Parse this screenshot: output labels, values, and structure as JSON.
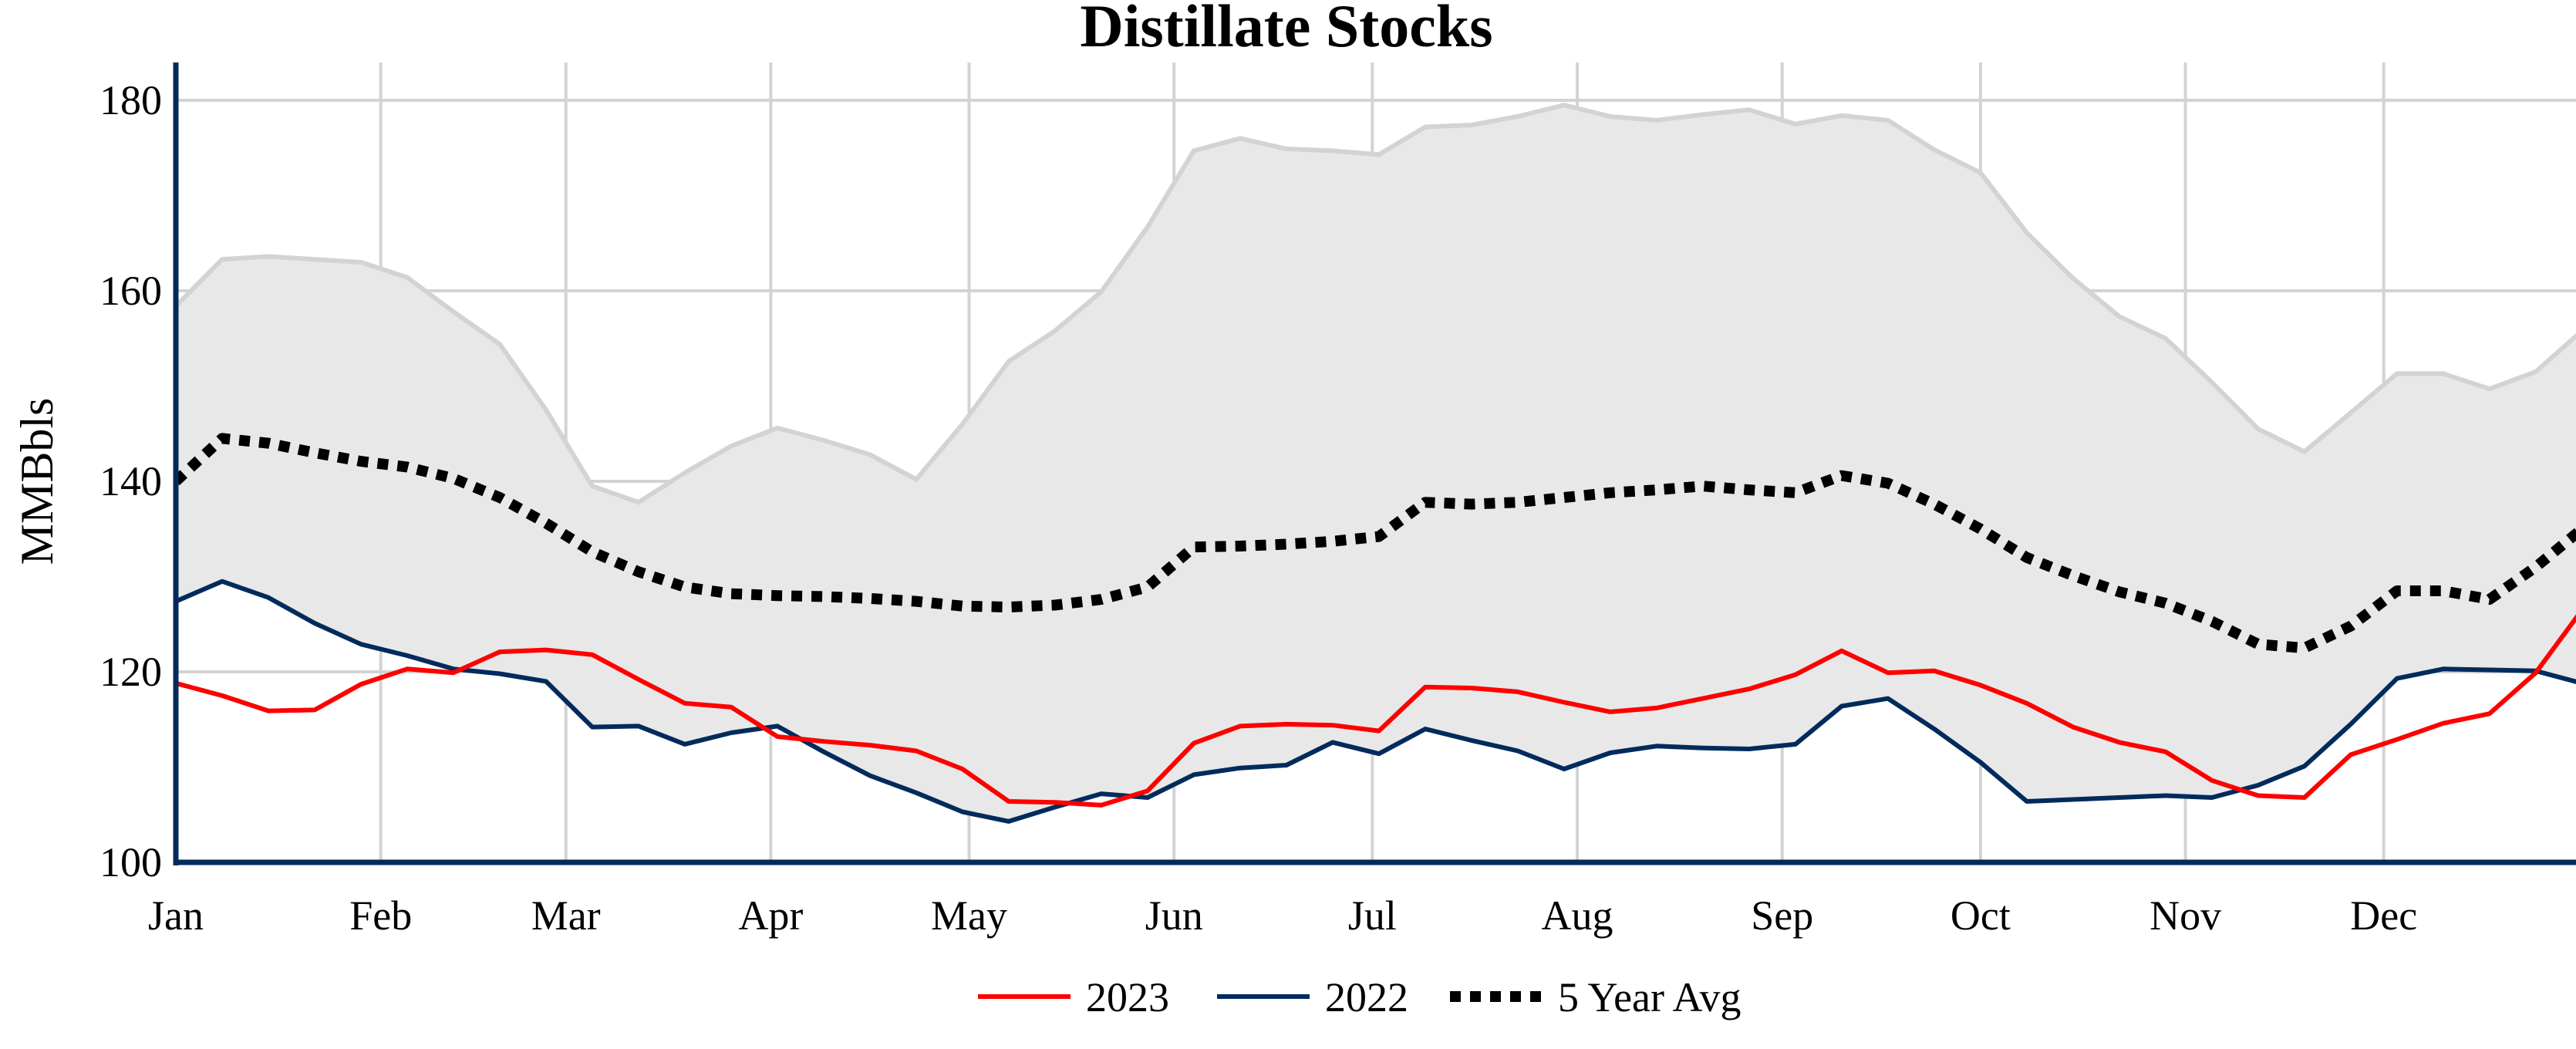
{
  "chart_data": {
    "type": "line",
    "title": "Distillate Stocks",
    "xlabel": "",
    "ylabel": "MMBbls",
    "ylim": [
      100,
      185
    ],
    "yticks": [
      100,
      120,
      140,
      160,
      180
    ],
    "xtick_labels": [
      "Jan",
      "Feb",
      "Mar",
      "Apr",
      "May",
      "Jun",
      "Jul",
      "Aug",
      "Sep",
      "Oct",
      "Nov",
      "Dec"
    ],
    "grid": true,
    "legend_position": "bottom",
    "colors": {
      "2023": "#ff0000",
      "2022": "#002b5c",
      "5 Year Avg": "#000000",
      "range_band": "#e8e8e8",
      "range_edge": "#d3d3d3",
      "axis": "#002b5c",
      "grid": "#d3d3d3"
    },
    "x": [
      "01-01",
      "01-08",
      "01-15",
      "01-22",
      "01-29",
      "02-05",
      "02-12",
      "02-19",
      "02-26",
      "03-05",
      "03-12",
      "03-19",
      "03-26",
      "04-02",
      "04-09",
      "04-16",
      "04-23",
      "04-30",
      "05-07",
      "05-14",
      "05-21",
      "05-28",
      "06-04",
      "06-11",
      "06-18",
      "06-25",
      "07-02",
      "07-09",
      "07-16",
      "07-23",
      "07-30",
      "08-06",
      "08-13",
      "08-20",
      "08-27",
      "09-03",
      "09-10",
      "09-17",
      "09-24",
      "10-01",
      "10-08",
      "10-15",
      "10-22",
      "10-29",
      "11-05",
      "11-12",
      "11-19",
      "11-26",
      "12-03",
      "12-10",
      "12-17",
      "12-24",
      "12-31"
    ],
    "series": [
      {
        "name": "2023",
        "style": "solid",
        "values": [
          118.8,
          117.5,
          115.9,
          116.0,
          118.7,
          120.3,
          119.9,
          122.1,
          122.3,
          121.8,
          119.2,
          116.7,
          116.3,
          113.2,
          112.7,
          112.3,
          111.7,
          109.8,
          106.4,
          106.3,
          106.0,
          107.5,
          112.5,
          114.3,
          114.5,
          114.4,
          113.8,
          118.4,
          118.3,
          117.9,
          116.8,
          115.8,
          116.2,
          117.2,
          118.2,
          119.7,
          122.2,
          119.9,
          120.1,
          118.6,
          116.7,
          114.2,
          112.6,
          111.6,
          108.6,
          107.0,
          106.8,
          111.3,
          112.9,
          114.6,
          115.6,
          119.9,
          126.5
        ]
      },
      {
        "name": "2022",
        "style": "solid",
        "values": [
          127.4,
          129.5,
          127.8,
          125.1,
          122.9,
          121.7,
          120.3,
          119.8,
          119.0,
          114.2,
          114.3,
          112.4,
          113.6,
          114.3,
          111.6,
          109.1,
          107.3,
          105.3,
          104.3,
          105.8,
          107.2,
          106.8,
          109.2,
          109.9,
          110.2,
          112.6,
          111.4,
          114.0,
          112.8,
          111.7,
          109.8,
          111.5,
          112.2,
          112.0,
          111.9,
          112.4,
          116.4,
          117.2,
          114.0,
          110.5,
          106.4,
          106.6,
          106.8,
          107.0,
          106.8,
          108.1,
          110.1,
          114.5,
          119.3,
          120.3,
          120.2,
          120.1,
          118.8
        ]
      },
      {
        "name": "5 Year Avg",
        "style": "dotted",
        "values": [
          140.0,
          144.5,
          144.0,
          143.0,
          142.1,
          141.5,
          140.3,
          138.3,
          135.6,
          132.6,
          130.5,
          128.9,
          128.2,
          128.0,
          127.9,
          127.7,
          127.4,
          126.9,
          126.8,
          127.0,
          127.6,
          128.9,
          133.1,
          133.2,
          133.4,
          133.7,
          134.2,
          137.8,
          137.6,
          137.8,
          138.3,
          138.8,
          139.1,
          139.5,
          139.1,
          138.8,
          140.6,
          139.8,
          137.6,
          135.0,
          132.0,
          130.1,
          128.4,
          127.2,
          125.3,
          122.9,
          122.5,
          124.8,
          128.5,
          128.5,
          127.6,
          131.0,
          135.0
        ]
      }
    ],
    "range_band": {
      "max": [
        158.4,
        163.3,
        163.6,
        163.3,
        163.0,
        161.4,
        157.8,
        154.4,
        147.5,
        139.5,
        137.8,
        140.9,
        143.7,
        145.6,
        144.3,
        142.8,
        140.2,
        146.0,
        152.6,
        155.8,
        159.9,
        166.7,
        174.7,
        176.0,
        174.9,
        174.7,
        174.3,
        177.2,
        177.4,
        178.3,
        179.5,
        178.3,
        177.9,
        178.5,
        179.0,
        177.5,
        178.4,
        177.9,
        174.8,
        172.4,
        166.1,
        161.3,
        157.3,
        155.0,
        150.4,
        145.5,
        143.1,
        147.2,
        151.3,
        151.3,
        149.7,
        151.5,
        155.8
      ],
      "min": [
        127.4,
        129.5,
        127.8,
        125.1,
        122.9,
        121.7,
        120.3,
        119.8,
        119.0,
        114.2,
        114.3,
        112.4,
        113.6,
        114.3,
        111.6,
        109.1,
        107.3,
        105.3,
        104.3,
        105.8,
        107.2,
        106.8,
        109.2,
        109.9,
        110.2,
        112.6,
        111.4,
        114.0,
        112.8,
        111.7,
        109.8,
        111.5,
        112.2,
        112.0,
        111.9,
        112.4,
        116.4,
        117.2,
        114.0,
        110.5,
        106.4,
        106.6,
        106.8,
        107.0,
        106.8,
        108.1,
        110.1,
        114.5,
        119.3,
        120.3,
        120.2,
        120.1,
        118.8
      ]
    }
  }
}
